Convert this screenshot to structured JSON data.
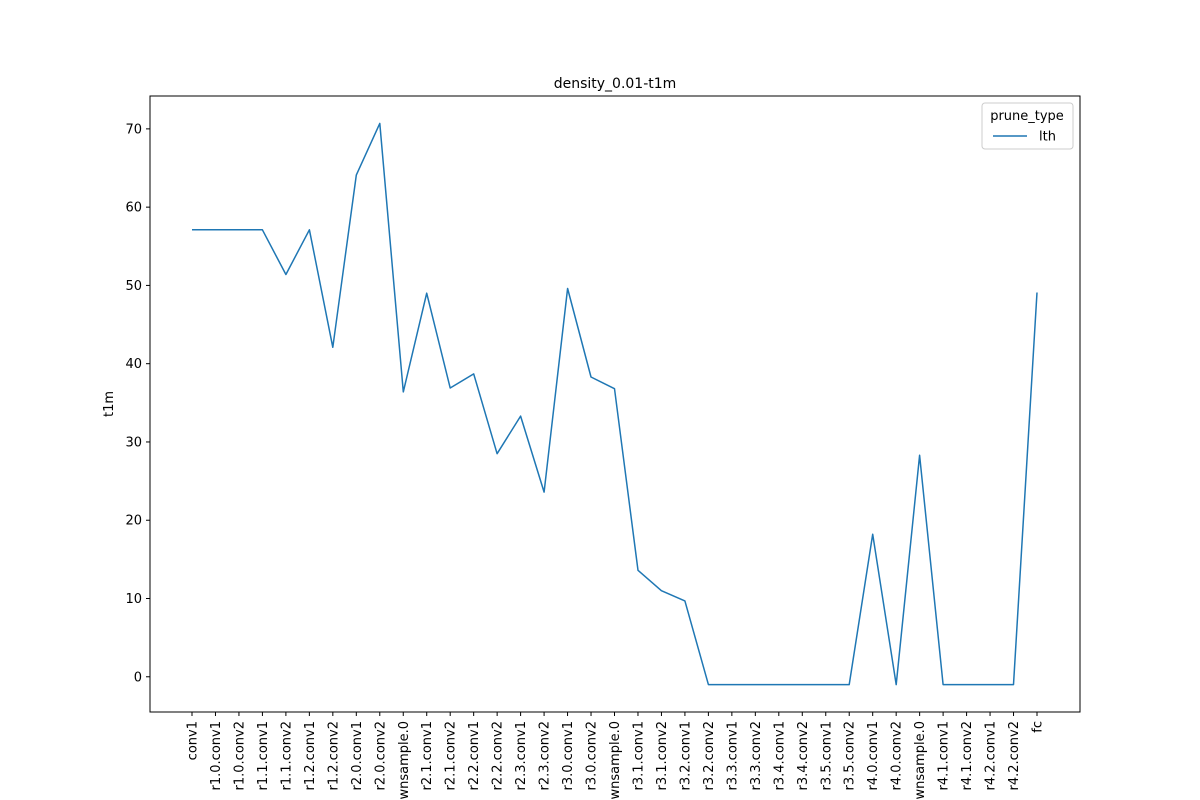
{
  "chart_data": {
    "type": "line",
    "title": "density_0.01-t1m",
    "xlabel": "",
    "ylabel": "t1m",
    "ylim": [
      -4.5,
      74.2
    ],
    "yticks": [
      0,
      10,
      20,
      30,
      40,
      50,
      60,
      70
    ],
    "grid": false,
    "legend": {
      "title": "prune_type",
      "placement": "top-right"
    },
    "categories": [
      "conv1",
      "r1.0.conv1",
      "r1.0.conv2",
      "r1.1.conv1",
      "r1.1.conv2",
      "r1.2.conv1",
      "r1.2.conv2",
      "r2.0.conv1",
      "r2.0.conv2",
      "wnsample.0",
      "r2.1.conv1",
      "r2.1.conv2",
      "r2.2.conv1",
      "r2.2.conv2",
      "r2.3.conv1",
      "r2.3.conv2",
      "r3.0.conv1",
      "r3.0.conv2",
      "wnsample.0",
      "r3.1.conv1",
      "r3.1.conv2",
      "r3.2.conv1",
      "r3.2.conv2",
      "r3.3.conv1",
      "r3.3.conv2",
      "r3.4.conv1",
      "r3.4.conv2",
      "r3.5.conv1",
      "r3.5.conv2",
      "r4.0.conv1",
      "r4.0.conv2",
      "wnsample.0",
      "r4.1.conv1",
      "r4.1.conv2",
      "r4.2.conv1",
      "r4.2.conv2",
      "fc"
    ],
    "series": [
      {
        "name": "lth",
        "color": "#1f77b4",
        "values": [
          57.1,
          57.1,
          57.1,
          57.1,
          51.4,
          57.1,
          42.1,
          64.1,
          70.7,
          36.4,
          49.0,
          36.9,
          38.7,
          28.5,
          33.3,
          23.6,
          49.6,
          38.3,
          36.8,
          13.6,
          11.0,
          9.7,
          -1.0,
          -1.0,
          -1.0,
          -1.0,
          -1.0,
          -1.0,
          -1.0,
          18.2,
          -1.0,
          28.3,
          -1.0,
          -1.0,
          -1.0,
          -1.0,
          49.1
        ]
      }
    ]
  }
}
